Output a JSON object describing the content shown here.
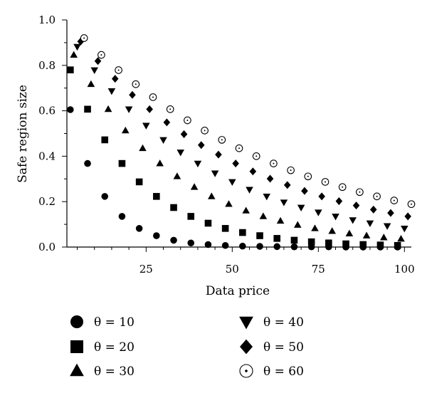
{
  "chart_data": {
    "type": "scatter",
    "title": "",
    "xlabel": "Data price",
    "ylabel": "Safe region size",
    "xlim": [
      2,
      102
    ],
    "ylim": [
      0,
      1.0
    ],
    "xticks": [
      25,
      50,
      75,
      100
    ],
    "xtick_labels": [
      "25",
      "50",
      "75",
      "100"
    ],
    "yticks": [
      0.0,
      0.2,
      0.4,
      0.6,
      0.8,
      1.0
    ],
    "ytick_labels": [
      "0.0",
      "0.2",
      "0.4",
      "0.6",
      "0.8",
      "1.0"
    ],
    "grid": false,
    "legend_position": "bottom",
    "series": [
      {
        "name": "θ = 10",
        "marker": "circle",
        "x": [
          3,
          8,
          13,
          18,
          23,
          28,
          33,
          38,
          43,
          48,
          53,
          58,
          63,
          68,
          73,
          78,
          83,
          88,
          93,
          98
        ],
        "y": [
          0.605,
          0.368,
          0.223,
          0.135,
          0.082,
          0.05,
          0.03,
          0.018,
          0.011,
          0.007,
          0.004,
          0.003,
          0.002,
          0.001,
          0.001,
          0.001,
          0.0,
          0.0,
          0.0,
          0.0
        ]
      },
      {
        "name": "θ = 20",
        "marker": "square",
        "x": [
          3,
          8,
          13,
          18,
          23,
          28,
          33,
          38,
          43,
          48,
          53,
          58,
          63,
          68,
          73,
          78,
          83,
          88,
          93,
          98
        ],
        "y": [
          0.78,
          0.607,
          0.472,
          0.368,
          0.287,
          0.223,
          0.174,
          0.135,
          0.105,
          0.082,
          0.064,
          0.05,
          0.038,
          0.03,
          0.023,
          0.018,
          0.014,
          0.011,
          0.009,
          0.007
        ]
      },
      {
        "name": "θ = 30",
        "marker": "triangle-up",
        "x": [
          4,
          9,
          14,
          19,
          24,
          29,
          34,
          39,
          44,
          49,
          54,
          59,
          64,
          69,
          74,
          79,
          84,
          89,
          94,
          99
        ],
        "y": [
          0.846,
          0.717,
          0.607,
          0.513,
          0.435,
          0.368,
          0.311,
          0.264,
          0.223,
          0.189,
          0.16,
          0.135,
          0.115,
          0.097,
          0.082,
          0.07,
          0.059,
          0.05,
          0.042,
          0.036
        ]
      },
      {
        "name": "θ = 40",
        "marker": "triangle-down",
        "x": [
          5,
          10,
          15,
          20,
          25,
          30,
          35,
          40,
          45,
          50,
          55,
          60,
          65,
          70,
          75,
          80,
          85,
          90,
          95,
          100
        ],
        "y": [
          0.882,
          0.779,
          0.687,
          0.607,
          0.535,
          0.472,
          0.417,
          0.368,
          0.325,
          0.287,
          0.253,
          0.223,
          0.197,
          0.174,
          0.153,
          0.135,
          0.119,
          0.105,
          0.093,
          0.082
        ]
      },
      {
        "name": "θ = 50",
        "marker": "diamond",
        "x": [
          6,
          11,
          16,
          21,
          26,
          31,
          36,
          41,
          46,
          51,
          56,
          61,
          66,
          71,
          76,
          81,
          86,
          91,
          96,
          101
        ],
        "y": [
          0.905,
          0.819,
          0.741,
          0.67,
          0.607,
          0.549,
          0.497,
          0.449,
          0.407,
          0.368,
          0.333,
          0.301,
          0.273,
          0.247,
          0.223,
          0.202,
          0.183,
          0.165,
          0.15,
          0.135
        ]
      },
      {
        "name": "θ = 60",
        "marker": "circle-open",
        "x": [
          7,
          12,
          17,
          22,
          27,
          32,
          37,
          42,
          47,
          52,
          57,
          62,
          67,
          72,
          77,
          82,
          87,
          92,
          97,
          102
        ],
        "y": [
          0.92,
          0.846,
          0.779,
          0.717,
          0.66,
          0.607,
          0.558,
          0.513,
          0.472,
          0.435,
          0.4,
          0.368,
          0.338,
          0.311,
          0.287,
          0.264,
          0.242,
          0.223,
          0.205,
          0.189
        ]
      }
    ]
  }
}
